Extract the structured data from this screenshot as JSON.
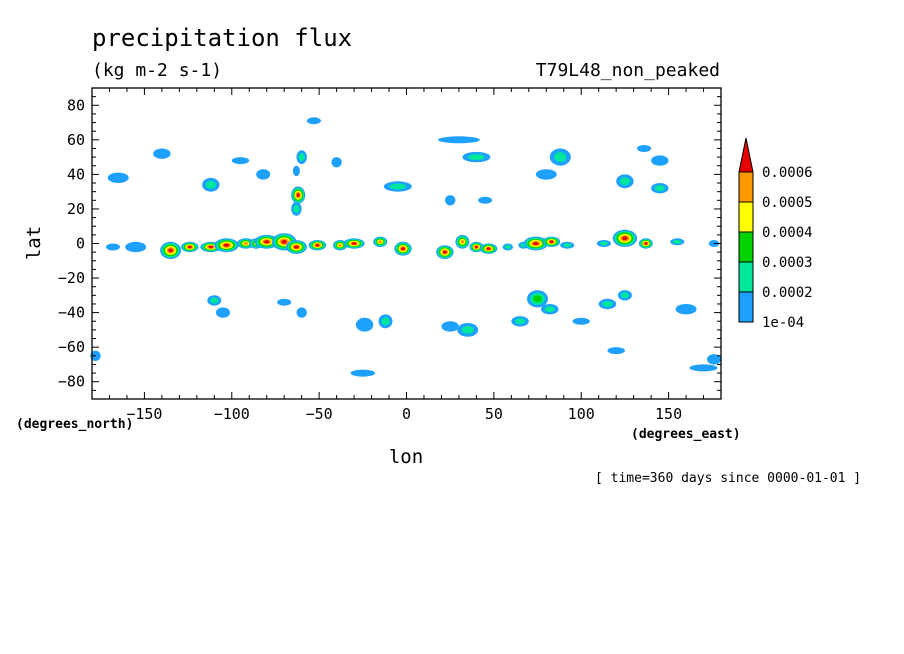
{
  "chart_data": {
    "type": "contour-map",
    "title": "precipitation flux",
    "units": "(kg m-2 s-1)",
    "experiment": "T79L48_non_peaked",
    "time_note": "[ time=360 days since 0000-01-01 ]",
    "xlabel": "lon",
    "ylabel": "lat",
    "x_units": "(degrees_east)",
    "y_units": "(degrees_north)",
    "xlim": [
      -180,
      180
    ],
    "ylim": [
      -90,
      90
    ],
    "x_ticks": [
      -150,
      -100,
      -50,
      0,
      50,
      100,
      150
    ],
    "y_ticks": [
      80,
      60,
      40,
      20,
      0,
      -20,
      -40,
      -60,
      -80
    ],
    "colorbar": {
      "levels": [
        "1e-04",
        "0.0002",
        "0.0003",
        "0.0004",
        "0.0005",
        "0.0006"
      ],
      "colors": [
        "#1ea0ff",
        "#00e69b",
        "#00d200",
        "#ffff00",
        "#ff9900",
        "#e60000"
      ]
    },
    "cells": [
      {
        "lon": -168,
        "lat": -2,
        "rx": 4,
        "ry": 2,
        "lev": 0
      },
      {
        "lon": -155,
        "lat": -2,
        "rx": 6,
        "ry": 3,
        "lev": 0
      },
      {
        "lon": -135,
        "lat": -4,
        "rx": 6,
        "ry": 5,
        "lev": 5
      },
      {
        "lon": -124,
        "lat": -2,
        "rx": 5,
        "ry": 3,
        "lev": 5
      },
      {
        "lon": -112,
        "lat": -2,
        "rx": 6,
        "ry": 3,
        "lev": 5
      },
      {
        "lon": -103,
        "lat": -1,
        "rx": 7,
        "ry": 4,
        "lev": 5
      },
      {
        "lon": -92,
        "lat": 0,
        "rx": 5,
        "ry": 3,
        "lev": 4
      },
      {
        "lon": -86,
        "lat": 0,
        "rx": 4,
        "ry": 3,
        "lev": 3
      },
      {
        "lon": -80,
        "lat": 1,
        "rx": 7,
        "ry": 4,
        "lev": 5
      },
      {
        "lon": -70,
        "lat": 1,
        "rx": 7,
        "ry": 5,
        "lev": 5
      },
      {
        "lon": -63,
        "lat": -2,
        "rx": 6,
        "ry": 4,
        "lev": 5
      },
      {
        "lon": -51,
        "lat": -1,
        "rx": 5,
        "ry": 3,
        "lev": 5
      },
      {
        "lon": -38,
        "lat": -1,
        "rx": 4,
        "ry": 3,
        "lev": 4
      },
      {
        "lon": -30,
        "lat": 0,
        "rx": 6,
        "ry": 3,
        "lev": 5
      },
      {
        "lon": -15,
        "lat": 1,
        "rx": 4,
        "ry": 3,
        "lev": 4
      },
      {
        "lon": -2,
        "lat": -3,
        "rx": 5,
        "ry": 4,
        "lev": 5
      },
      {
        "lon": 22,
        "lat": -5,
        "rx": 5,
        "ry": 4,
        "lev": 5
      },
      {
        "lon": 32,
        "lat": 1,
        "rx": 4,
        "ry": 4,
        "lev": 4
      },
      {
        "lon": 40,
        "lat": -2,
        "rx": 4,
        "ry": 3,
        "lev": 5
      },
      {
        "lon": 47,
        "lat": -3,
        "rx": 5,
        "ry": 3,
        "lev": 5
      },
      {
        "lon": 58,
        "lat": -2,
        "rx": 3,
        "ry": 2,
        "lev": 1
      },
      {
        "lon": 67,
        "lat": -1,
        "rx": 3,
        "ry": 2,
        "lev": 1
      },
      {
        "lon": 74,
        "lat": 0,
        "rx": 7,
        "ry": 4,
        "lev": 5
      },
      {
        "lon": 83,
        "lat": 1,
        "rx": 5,
        "ry": 3,
        "lev": 5
      },
      {
        "lon": 92,
        "lat": -1,
        "rx": 4,
        "ry": 2,
        "lev": 1
      },
      {
        "lon": 113,
        "lat": 0,
        "rx": 4,
        "ry": 2,
        "lev": 1
      },
      {
        "lon": 125,
        "lat": 3,
        "rx": 7,
        "ry": 5,
        "lev": 5
      },
      {
        "lon": 137,
        "lat": 0,
        "rx": 4,
        "ry": 3,
        "lev": 5
      },
      {
        "lon": 155,
        "lat": 1,
        "rx": 4,
        "ry": 2,
        "lev": 1
      },
      {
        "lon": 176,
        "lat": 0,
        "rx": 3,
        "ry": 2,
        "lev": 0
      },
      {
        "lon": -62,
        "lat": 28,
        "rx": 4,
        "ry": 5,
        "lev": 5
      },
      {
        "lon": -63,
        "lat": 20,
        "rx": 3,
        "ry": 4,
        "lev": 1
      },
      {
        "lon": -60,
        "lat": 50,
        "rx": 3,
        "ry": 4,
        "lev": 1
      },
      {
        "lon": -63,
        "lat": 42,
        "rx": 2,
        "ry": 3,
        "lev": 0
      },
      {
        "lon": -53,
        "lat": 71,
        "rx": 4,
        "ry": 2,
        "lev": 0
      },
      {
        "lon": -112,
        "lat": 34,
        "rx": 5,
        "ry": 4,
        "lev": 1
      },
      {
        "lon": -95,
        "lat": 48,
        "rx": 5,
        "ry": 2,
        "lev": 0
      },
      {
        "lon": -82,
        "lat": 40,
        "rx": 4,
        "ry": 3,
        "lev": 0
      },
      {
        "lon": -165,
        "lat": 38,
        "rx": 6,
        "ry": 3,
        "lev": 0
      },
      {
        "lon": -140,
        "lat": 52,
        "rx": 5,
        "ry": 3,
        "lev": 0
      },
      {
        "lon": -40,
        "lat": 47,
        "rx": 3,
        "ry": 3,
        "lev": 0
      },
      {
        "lon": -5,
        "lat": 33,
        "rx": 8,
        "ry": 3,
        "lev": 1
      },
      {
        "lon": 30,
        "lat": 60,
        "rx": 12,
        "ry": 2,
        "lev": 0
      },
      {
        "lon": 40,
        "lat": 50,
        "rx": 8,
        "ry": 3,
        "lev": 1
      },
      {
        "lon": 25,
        "lat": 25,
        "rx": 3,
        "ry": 3,
        "lev": 0
      },
      {
        "lon": 45,
        "lat": 25,
        "rx": 4,
        "ry": 2,
        "lev": 0
      },
      {
        "lon": 88,
        "lat": 50,
        "rx": 6,
        "ry": 5,
        "lev": 1
      },
      {
        "lon": 80,
        "lat": 40,
        "rx": 6,
        "ry": 3,
        "lev": 0
      },
      {
        "lon": 125,
        "lat": 36,
        "rx": 5,
        "ry": 4,
        "lev": 1
      },
      {
        "lon": 145,
        "lat": 32,
        "rx": 5,
        "ry": 3,
        "lev": 1
      },
      {
        "lon": 145,
        "lat": 48,
        "rx": 5,
        "ry": 3,
        "lev": 0
      },
      {
        "lon": 136,
        "lat": 55,
        "rx": 4,
        "ry": 2,
        "lev": 0
      },
      {
        "lon": -110,
        "lat": -33,
        "rx": 4,
        "ry": 3,
        "lev": 1
      },
      {
        "lon": -105,
        "lat": -40,
        "rx": 4,
        "ry": 3,
        "lev": 0
      },
      {
        "lon": -70,
        "lat": -34,
        "rx": 4,
        "ry": 2,
        "lev": 0
      },
      {
        "lon": -60,
        "lat": -40,
        "rx": 3,
        "ry": 3,
        "lev": 0
      },
      {
        "lon": -12,
        "lat": -45,
        "rx": 4,
        "ry": 4,
        "lev": 1
      },
      {
        "lon": -24,
        "lat": -47,
        "rx": 5,
        "ry": 4,
        "lev": 0
      },
      {
        "lon": 35,
        "lat": -50,
        "rx": 6,
        "ry": 4,
        "lev": 1
      },
      {
        "lon": 25,
        "lat": -48,
        "rx": 5,
        "ry": 3,
        "lev": 0
      },
      {
        "lon": 75,
        "lat": -32,
        "rx": 6,
        "ry": 5,
        "lev": 2
      },
      {
        "lon": 82,
        "lat": -38,
        "rx": 5,
        "ry": 3,
        "lev": 1
      },
      {
        "lon": 65,
        "lat": -45,
        "rx": 5,
        "ry": 3,
        "lev": 1
      },
      {
        "lon": 115,
        "lat": -35,
        "rx": 5,
        "ry": 3,
        "lev": 1
      },
      {
        "lon": 125,
        "lat": -30,
        "rx": 4,
        "ry": 3,
        "lev": 1
      },
      {
        "lon": 100,
        "lat": -45,
        "rx": 5,
        "ry": 2,
        "lev": 0
      },
      {
        "lon": 160,
        "lat": -38,
        "rx": 6,
        "ry": 3,
        "lev": 0
      },
      {
        "lon": 120,
        "lat": -62,
        "rx": 5,
        "ry": 2,
        "lev": 0
      },
      {
        "lon": 170,
        "lat": -72,
        "rx": 8,
        "ry": 2,
        "lev": 0
      },
      {
        "lon": 176,
        "lat": -67,
        "rx": 4,
        "ry": 3,
        "lev": 0
      },
      {
        "lon": -25,
        "lat": -75,
        "rx": 7,
        "ry": 2,
        "lev": 0
      },
      {
        "lon": -178,
        "lat": -65,
        "rx": 3,
        "ry": 3,
        "lev": 0
      }
    ]
  }
}
